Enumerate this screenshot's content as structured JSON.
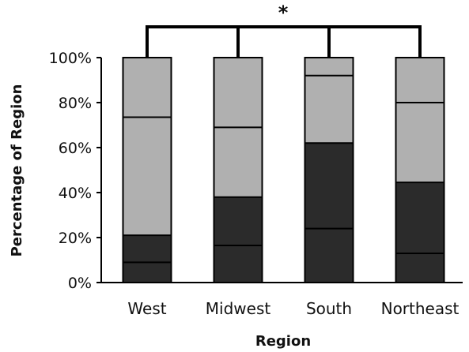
{
  "chart_data": {
    "type": "bar",
    "stacked": true,
    "title": "",
    "xlabel": "Region",
    "ylabel": "Percentage of Region",
    "ylim": [
      0,
      100
    ],
    "yticks": [
      "0%",
      "20%",
      "40%",
      "60%",
      "80%",
      "100%"
    ],
    "grid": false,
    "legend": "none",
    "categories": [
      "West",
      "Midwest",
      "South",
      "Northeast"
    ],
    "series": [
      {
        "values": [
          9,
          16.5,
          24,
          13
        ],
        "color": "#2b2b2b"
      },
      {
        "values": [
          12,
          21.5,
          38,
          31.5
        ],
        "color": "#2b2b2b"
      },
      {
        "values": [
          52.5,
          31,
          30,
          35.5
        ],
        "color": "#b0b0b0"
      },
      {
        "values": [
          26.5,
          31,
          8,
          20
        ],
        "color": "#b0b0b0"
      }
    ],
    "annotation": {
      "text": "*",
      "spans_categories": [
        "West",
        "Midwest",
        "South",
        "Northeast"
      ]
    }
  }
}
